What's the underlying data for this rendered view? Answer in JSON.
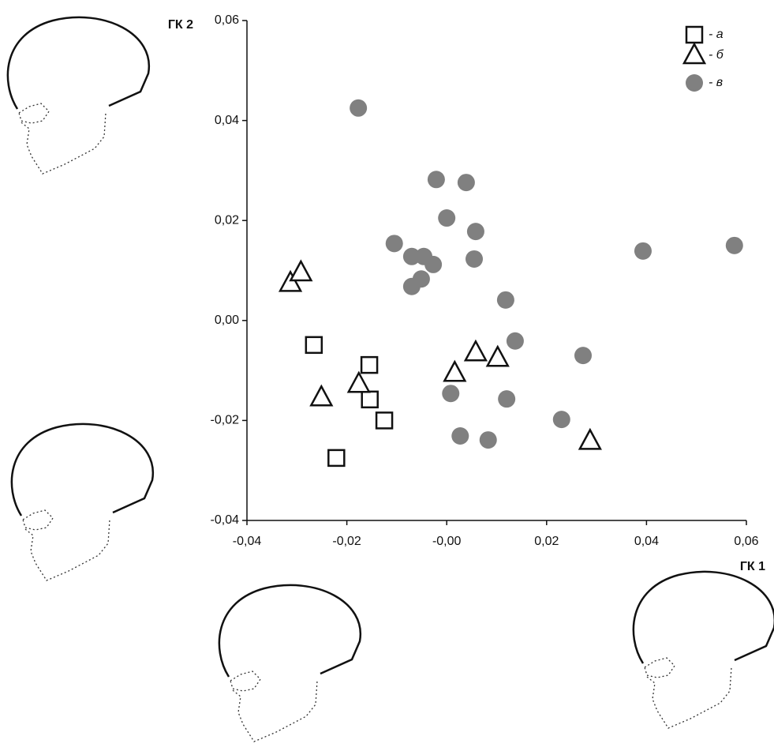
{
  "chart_data": {
    "type": "scatter",
    "x_label": "ГК 1",
    "y_label": "ГК 2",
    "xlim": [
      -0.04,
      0.06
    ],
    "ylim": [
      -0.04,
      0.06
    ],
    "xticks": [
      {
        "value": -0.04,
        "label": "-0,04"
      },
      {
        "value": -0.02,
        "label": "-0,02"
      },
      {
        "value": 0,
        "label": "-0,00"
      },
      {
        "value": 0.02,
        "label": "0,02"
      },
      {
        "value": 0.04,
        "label": "0,04"
      },
      {
        "value": 0.06,
        "label": "0,06"
      }
    ],
    "yticks": [
      {
        "value": -0.04,
        "label": "-0,04"
      },
      {
        "value": -0.02,
        "label": "-0,02"
      },
      {
        "value": 0,
        "label": "0,00"
      },
      {
        "value": 0.02,
        "label": "0,02"
      },
      {
        "value": 0.04,
        "label": "0,04"
      },
      {
        "value": 0.06,
        "label": "0,06"
      }
    ],
    "grid": false,
    "legend": "top-right",
    "series": [
      {
        "name": "- а",
        "marker": "square",
        "color": "#111111",
        "x": [
          -0.0266,
          -0.0155,
          -0.0154,
          -0.0125,
          -0.0221
        ],
        "values": [
          -0.0049,
          -0.0089,
          -0.0158,
          -0.02,
          -0.0275
        ]
      },
      {
        "name": "- б",
        "marker": "triangle",
        "color": "#111111",
        "x": [
          -0.0313,
          -0.0292,
          -0.0251,
          -0.0176,
          0.0016,
          0.0058,
          0.0102,
          0.0287
        ],
        "values": [
          0.0075,
          0.0096,
          -0.0154,
          -0.0127,
          -0.0105,
          -0.0064,
          -0.0075,
          -0.0241
        ]
      },
      {
        "name": "- в",
        "marker": "circle",
        "color": "#808080",
        "x": [
          -0.0177,
          -0.0021,
          0.0039,
          0.0,
          0.0058,
          -0.0105,
          -0.007,
          -0.0046,
          -0.0027,
          0.0055,
          -0.0051,
          -0.007,
          0.0118,
          0.0137,
          0.0273,
          0.0008,
          0.012,
          0.023,
          0.0027,
          0.0083,
          0.0393,
          0.0576
        ],
        "values": [
          0.0425,
          0.0282,
          0.0276,
          0.0205,
          0.0178,
          0.0154,
          0.0128,
          0.0128,
          0.0112,
          0.0123,
          0.0083,
          0.0068,
          0.0041,
          -0.0041,
          -0.007,
          -0.0146,
          -0.0157,
          -0.0198,
          -0.0231,
          -0.0239,
          0.0139,
          0.015
        ]
      }
    ]
  }
}
